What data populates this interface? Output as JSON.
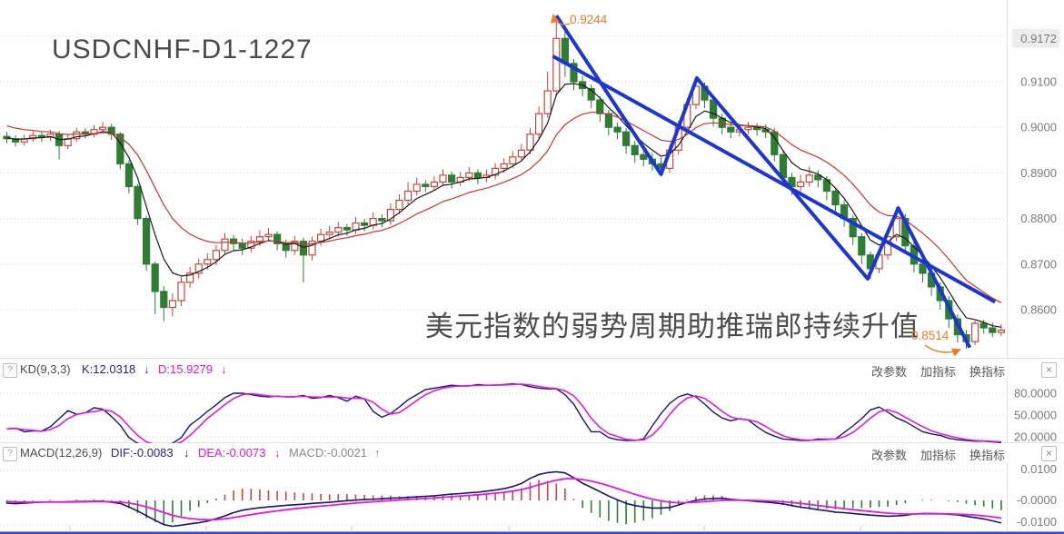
{
  "title": "USDCNHF-D1-1227",
  "caption": "美元指数的弱势周期助推瑞郎持续升值",
  "annotations": {
    "high": "0.9244",
    "low": "0.8514"
  },
  "main_axis": {
    "labels": [
      "0.9172",
      "0.9100",
      "0.9000",
      "0.8900",
      "0.8800",
      "0.8700",
      "0.8600"
    ],
    "grid_prices": [
      0.92,
      0.91,
      0.9,
      0.89,
      0.88,
      0.87,
      0.86
    ]
  },
  "kd_panel": {
    "help": "?",
    "name": "KD(9,3,3)",
    "k_label": "K:12.0318",
    "k_arrow": "↓",
    "d_label": "D:15.9279",
    "d_arrow": "↓",
    "buttons": [
      "改参数",
      "加指标",
      "换指标"
    ],
    "close": "×",
    "axis_labels": [
      "80.0000",
      "50.0000",
      "20.0000"
    ],
    "axis_values": [
      80,
      50,
      20
    ]
  },
  "macd_panel": {
    "help": "?",
    "name": "MACD(12,26,9)",
    "dif_label": "DIF:-0.0083",
    "dif_arrow": "↓",
    "dea_label": "DEA:-0.0073",
    "dea_arrow": "↓",
    "macd_label": "MACD:-0.0021",
    "macd_arrow": "↑",
    "buttons": [
      "改参数",
      "加指标",
      "换指标"
    ],
    "close": "×",
    "axis_labels": [
      "0.0100",
      "-0.0000",
      "-0.0100"
    ],
    "axis_values": [
      0.01,
      0,
      -0.01
    ]
  },
  "colors": {
    "up": "#c9463c",
    "down": "#2d7d33",
    "ma_fast": "#1a1a1a",
    "ma_slow": "#d2342c",
    "trend": "#1c36d6",
    "k_line": "#16166e",
    "d_line": "#e31ae3",
    "dif_line": "#16166e",
    "dea_line": "#e31ae3",
    "hist_pos": "#c9463c",
    "hist_neg": "#2d7d33",
    "accent_orange": "#ec7d28",
    "axis_text": "#7a7a7a",
    "grid": "#d6d6d6",
    "separator": "#e3e3e3",
    "bottom_bar": "#2f4bd7",
    "boxed_label_bg": "#ededed"
  },
  "chart_data": {
    "type": "candlestick",
    "symbol": "USDCNHF",
    "timeframe": "D1",
    "price_axis_range": [
      0.85,
      0.9244
    ],
    "grid": true,
    "ma_fast_period": 5,
    "ma_slow_period": 13,
    "candles": [
      [
        0.898,
        0.899,
        0.8965,
        0.8975
      ],
      [
        0.8975,
        0.8983,
        0.8958,
        0.8968
      ],
      [
        0.8968,
        0.8984,
        0.896,
        0.8975
      ],
      [
        0.8975,
        0.8991,
        0.8968,
        0.8982
      ],
      [
        0.8982,
        0.899,
        0.8968,
        0.8978
      ],
      [
        0.8978,
        0.8994,
        0.897,
        0.8985
      ],
      [
        0.8985,
        0.8992,
        0.893,
        0.896
      ],
      [
        0.896,
        0.8984,
        0.8952,
        0.8975
      ],
      [
        0.8975,
        0.8999,
        0.8968,
        0.899
      ],
      [
        0.899,
        0.8998,
        0.8975,
        0.8985
      ],
      [
        0.8985,
        0.9005,
        0.8978,
        0.8995
      ],
      [
        0.8995,
        0.9012,
        0.8988,
        0.9
      ],
      [
        0.9,
        0.9008,
        0.8972,
        0.8985
      ],
      [
        0.8985,
        0.899,
        0.8908,
        0.892
      ],
      [
        0.892,
        0.8928,
        0.8855,
        0.887
      ],
      [
        0.887,
        0.8876,
        0.8786,
        0.88
      ],
      [
        0.88,
        0.8806,
        0.8685,
        0.87
      ],
      [
        0.87,
        0.8706,
        0.859,
        0.864
      ],
      [
        0.864,
        0.8652,
        0.8575,
        0.8605
      ],
      [
        0.8605,
        0.8636,
        0.8585,
        0.862
      ],
      [
        0.862,
        0.8672,
        0.8608,
        0.866
      ],
      [
        0.866,
        0.8694,
        0.8648,
        0.868
      ],
      [
        0.868,
        0.8712,
        0.8668,
        0.87
      ],
      [
        0.87,
        0.8724,
        0.8688,
        0.871
      ],
      [
        0.871,
        0.8742,
        0.8698,
        0.873
      ],
      [
        0.873,
        0.8768,
        0.872,
        0.8755
      ],
      [
        0.8755,
        0.8764,
        0.873,
        0.8745
      ],
      [
        0.8745,
        0.8756,
        0.872,
        0.8735
      ],
      [
        0.8735,
        0.8762,
        0.8726,
        0.875
      ],
      [
        0.875,
        0.8774,
        0.874,
        0.876
      ],
      [
        0.876,
        0.8779,
        0.875,
        0.8765
      ],
      [
        0.8765,
        0.8772,
        0.873,
        0.8745
      ],
      [
        0.8745,
        0.8754,
        0.8714,
        0.873
      ],
      [
        0.873,
        0.8762,
        0.872,
        0.875
      ],
      [
        0.875,
        0.8758,
        0.866,
        0.872
      ],
      [
        0.872,
        0.876,
        0.8708,
        0.875
      ],
      [
        0.875,
        0.8778,
        0.874,
        0.8765
      ],
      [
        0.8765,
        0.8784,
        0.8754,
        0.877
      ],
      [
        0.877,
        0.8792,
        0.876,
        0.878
      ],
      [
        0.878,
        0.8788,
        0.8762,
        0.8775
      ],
      [
        0.8775,
        0.8803,
        0.8766,
        0.879
      ],
      [
        0.879,
        0.8799,
        0.8772,
        0.8785
      ],
      [
        0.8785,
        0.8813,
        0.8776,
        0.88
      ],
      [
        0.88,
        0.8809,
        0.8781,
        0.8795
      ],
      [
        0.8795,
        0.8833,
        0.8786,
        0.882
      ],
      [
        0.882,
        0.8853,
        0.881,
        0.884
      ],
      [
        0.884,
        0.888,
        0.883,
        0.886
      ],
      [
        0.886,
        0.889,
        0.885,
        0.8875
      ],
      [
        0.8875,
        0.8884,
        0.8858,
        0.887
      ],
      [
        0.887,
        0.8893,
        0.8861,
        0.888
      ],
      [
        0.888,
        0.8908,
        0.8871,
        0.8895
      ],
      [
        0.8895,
        0.8903,
        0.8866,
        0.888
      ],
      [
        0.888,
        0.8902,
        0.8871,
        0.889
      ],
      [
        0.889,
        0.8913,
        0.8881,
        0.89
      ],
      [
        0.89,
        0.8908,
        0.8875,
        0.889
      ],
      [
        0.889,
        0.8907,
        0.888,
        0.8895
      ],
      [
        0.8895,
        0.8922,
        0.8886,
        0.891
      ],
      [
        0.891,
        0.8932,
        0.89,
        0.892
      ],
      [
        0.892,
        0.8948,
        0.8911,
        0.8935
      ],
      [
        0.8935,
        0.8963,
        0.8926,
        0.895
      ],
      [
        0.895,
        0.8998,
        0.8941,
        0.8985
      ],
      [
        0.8985,
        0.9046,
        0.8976,
        0.903
      ],
      [
        0.903,
        0.9122,
        0.9021,
        0.908
      ],
      [
        0.908,
        0.9244,
        0.907,
        0.9195
      ],
      [
        0.9195,
        0.9214,
        0.911,
        0.914
      ],
      [
        0.914,
        0.915,
        0.9082,
        0.91
      ],
      [
        0.91,
        0.9112,
        0.9068,
        0.9085
      ],
      [
        0.9085,
        0.9094,
        0.9042,
        0.906
      ],
      [
        0.906,
        0.9068,
        0.9012,
        0.903
      ],
      [
        0.903,
        0.9038,
        0.8982,
        0.9
      ],
      [
        0.9,
        0.901,
        0.8974,
        0.899
      ],
      [
        0.899,
        0.8998,
        0.8942,
        0.896
      ],
      [
        0.896,
        0.897,
        0.8922,
        0.894
      ],
      [
        0.894,
        0.8952,
        0.8915,
        0.893
      ],
      [
        0.893,
        0.8944,
        0.8905,
        0.892
      ],
      [
        0.892,
        0.8934,
        0.8898,
        0.891
      ],
      [
        0.891,
        0.8962,
        0.89,
        0.895
      ],
      [
        0.895,
        0.9014,
        0.894,
        0.9
      ],
      [
        0.9,
        0.9064,
        0.899,
        0.905
      ],
      [
        0.905,
        0.9108,
        0.904,
        0.909
      ],
      [
        0.909,
        0.9098,
        0.9042,
        0.906
      ],
      [
        0.906,
        0.9068,
        0.9002,
        0.902
      ],
      [
        0.902,
        0.903,
        0.8984,
        0.9
      ],
      [
        0.9,
        0.9012,
        0.8976,
        0.899
      ],
      [
        0.899,
        0.9008,
        0.898,
        0.8995
      ],
      [
        0.8995,
        0.9012,
        0.8985,
        0.9
      ],
      [
        0.9,
        0.9009,
        0.8981,
        0.8995
      ],
      [
        0.8995,
        0.9006,
        0.8976,
        0.899
      ],
      [
        0.899,
        0.8998,
        0.8925,
        0.894
      ],
      [
        0.894,
        0.8948,
        0.8872,
        0.889
      ],
      [
        0.889,
        0.89,
        0.8852,
        0.887
      ],
      [
        0.887,
        0.8896,
        0.886,
        0.888
      ],
      [
        0.888,
        0.8914,
        0.887,
        0.8895
      ],
      [
        0.8895,
        0.8906,
        0.8868,
        0.8885
      ],
      [
        0.8885,
        0.8893,
        0.884,
        0.886
      ],
      [
        0.886,
        0.8868,
        0.8812,
        0.883
      ],
      [
        0.883,
        0.884,
        0.8782,
        0.88
      ],
      [
        0.88,
        0.8808,
        0.8742,
        0.876
      ],
      [
        0.876,
        0.8768,
        0.87,
        0.872
      ],
      [
        0.872,
        0.8728,
        0.8668,
        0.869
      ],
      [
        0.869,
        0.8732,
        0.868,
        0.872
      ],
      [
        0.872,
        0.8772,
        0.871,
        0.876
      ],
      [
        0.876,
        0.8825,
        0.875,
        0.88
      ],
      [
        0.88,
        0.881,
        0.8722,
        0.874
      ],
      [
        0.874,
        0.875,
        0.8682,
        0.87
      ],
      [
        0.87,
        0.8712,
        0.866,
        0.868
      ],
      [
        0.868,
        0.869,
        0.863,
        0.865
      ],
      [
        0.865,
        0.866,
        0.86,
        0.862
      ],
      [
        0.862,
        0.863,
        0.856,
        0.858
      ],
      [
        0.858,
        0.859,
        0.8528,
        0.8545
      ],
      [
        0.8545,
        0.8556,
        0.8514,
        0.853
      ],
      [
        0.853,
        0.8576,
        0.8522,
        0.857
      ],
      [
        0.857,
        0.8578,
        0.8548,
        0.856
      ],
      [
        0.856,
        0.8572,
        0.854,
        0.855
      ],
      [
        0.855,
        0.8568,
        0.8542,
        0.8555
      ]
    ],
    "kd": {
      "d_sma_period": 3,
      "k": [
        31,
        32,
        27,
        28,
        28,
        34,
        45,
        56,
        51,
        53,
        60,
        58,
        48,
        36,
        19,
        11,
        9,
        8,
        8,
        11,
        19,
        36,
        45,
        55,
        64,
        74,
        80,
        80,
        78,
        76,
        75,
        76,
        75,
        75,
        77,
        73,
        74,
        77,
        74,
        69,
        76,
        72,
        55,
        47,
        52,
        61,
        71,
        78,
        85,
        87,
        89,
        91,
        90,
        90,
        92,
        91,
        91,
        92,
        93,
        92,
        89,
        87,
        86,
        86,
        78,
        65,
        45,
        27,
        27,
        19,
        16,
        15,
        15,
        17,
        35,
        52,
        66,
        75,
        79,
        75,
        65,
        54,
        46,
        42,
        45,
        43,
        34,
        26,
        21,
        17,
        16,
        15,
        15,
        17,
        17,
        17,
        26,
        35,
        45,
        57,
        61,
        54,
        46,
        41,
        34,
        27,
        24,
        22,
        18,
        16,
        15,
        14,
        14,
        13,
        12
      ]
    },
    "macd": {
      "dea_ema_period": 9,
      "hist_multiplier": 2,
      "dif": [
        -0.001,
        -0.0012,
        -0.001,
        -0.0008,
        -0.0006,
        -0.0005,
        -0.0006,
        -0.0005,
        -0.0004,
        -0.0004,
        -0.0003,
        -0.0003,
        -0.0007,
        -0.0011,
        -0.0024,
        -0.0039,
        -0.0056,
        -0.0073,
        -0.0089,
        -0.0095,
        -0.0091,
        -0.0086,
        -0.0082,
        -0.0076,
        -0.0067,
        -0.0057,
        -0.0045,
        -0.0036,
        -0.0031,
        -0.0027,
        -0.0024,
        -0.0021,
        -0.0018,
        -0.0016,
        -0.0014,
        -0.0011,
        -0.0009,
        -0.0007,
        -0.0004,
        -0.0001,
        0.0001,
        0.0003,
        0.0004,
        0.0006,
        0.0008,
        0.0009,
        0.0011,
        0.0013,
        0.0015,
        0.0017,
        0.002,
        0.0023,
        0.0025,
        0.0028,
        0.003,
        0.0034,
        0.0038,
        0.0043,
        0.0051,
        0.0062,
        0.0081,
        0.0095,
        0.0102,
        0.0105,
        0.0101,
        0.0083,
        0.0063,
        0.0048,
        0.0032,
        0.0016,
        0.0002,
        -0.0011,
        -0.0019,
        -0.0024,
        -0.0028,
        -0.0028,
        -0.0026,
        -0.0017,
        -0.0007,
        0.0,
        0.0005,
        0.0007,
        0.0008,
        0.0004,
        0.0001,
        -0.0001,
        -0.0004,
        -0.0006,
        -0.0009,
        -0.0013,
        -0.0019,
        -0.0025,
        -0.0029,
        -0.0034,
        -0.0038,
        -0.0043,
        -0.0045,
        -0.0048,
        -0.0051,
        -0.0054,
        -0.0056,
        -0.0058,
        -0.0057,
        -0.0055,
        -0.005,
        -0.0048,
        -0.0048,
        -0.0049,
        -0.0051,
        -0.0053,
        -0.0058,
        -0.0063,
        -0.0068,
        -0.0075,
        -0.0083
      ]
    },
    "trendlines": {
      "zigzag": [
        [
          63.0,
          0.9245
        ],
        [
          75.0,
          0.8897
        ],
        [
          79.1,
          0.9108
        ],
        [
          98.7,
          0.8668
        ],
        [
          102.2,
          0.8823
        ],
        [
          110.4,
          0.8517
        ]
      ],
      "line": [
        [
          62.6,
          0.9156
        ],
        [
          113.3,
          0.8617
        ]
      ]
    },
    "annotation_points": {
      "high": {
        "index": 63,
        "price": 0.9244
      },
      "low": {
        "index": 110,
        "price": 0.8514
      }
    }
  }
}
